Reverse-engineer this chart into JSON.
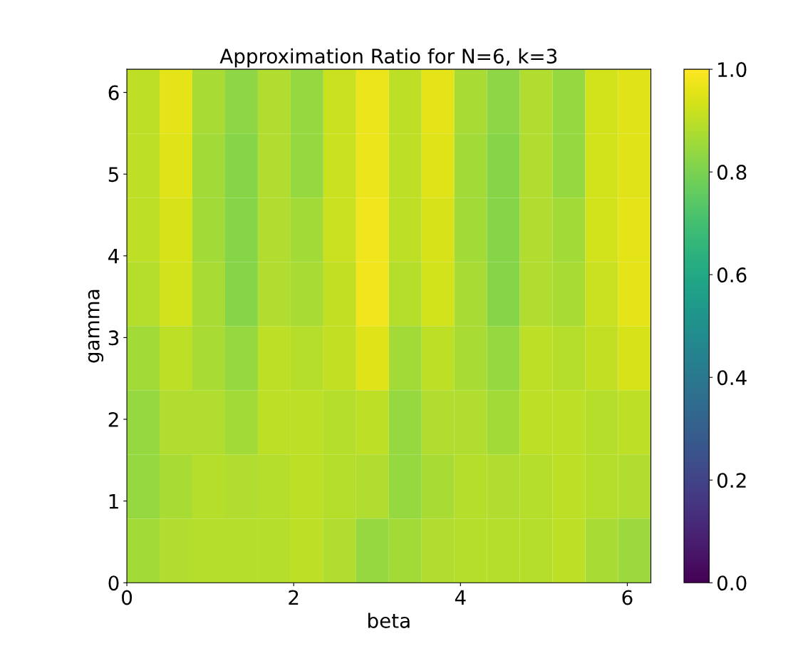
{
  "chart_data": {
    "type": "heatmap",
    "title": "Approximation Ratio for N=6, k=3",
    "xlabel": "beta",
    "ylabel": "gamma",
    "xlim": [
      0,
      6.283
    ],
    "ylim": [
      0,
      6.283
    ],
    "xticks": [
      0,
      2,
      4,
      6
    ],
    "yticks": [
      0,
      1,
      2,
      3,
      4,
      5,
      6
    ],
    "clim": [
      0,
      1
    ],
    "cticks": [
      {
        "value": 0,
        "label": "0.0"
      },
      {
        "value": 0.2,
        "label": "0.2"
      },
      {
        "value": 0.4,
        "label": "0.4"
      },
      {
        "value": 0.6,
        "label": "0.6"
      },
      {
        "value": 0.8,
        "label": "0.8"
      },
      {
        "value": 1,
        "label": "1.0"
      }
    ],
    "cells": [
      [
        0.9,
        0.96,
        0.87,
        0.83,
        0.88,
        0.84,
        0.92,
        0.97,
        0.9,
        0.96,
        0.87,
        0.83,
        0.88,
        0.84,
        0.93,
        0.95
      ],
      [
        0.9,
        0.95,
        0.86,
        0.82,
        0.88,
        0.84,
        0.92,
        0.97,
        0.9,
        0.95,
        0.86,
        0.82,
        0.88,
        0.84,
        0.93,
        0.95
      ],
      [
        0.9,
        0.94,
        0.86,
        0.82,
        0.88,
        0.86,
        0.92,
        0.98,
        0.9,
        0.94,
        0.86,
        0.82,
        0.88,
        0.86,
        0.93,
        0.96
      ],
      [
        0.89,
        0.93,
        0.87,
        0.82,
        0.88,
        0.87,
        0.91,
        0.98,
        0.89,
        0.93,
        0.87,
        0.82,
        0.88,
        0.87,
        0.92,
        0.96
      ],
      [
        0.86,
        0.9,
        0.87,
        0.84,
        0.9,
        0.89,
        0.91,
        0.95,
        0.86,
        0.9,
        0.87,
        0.84,
        0.9,
        0.89,
        0.91,
        0.94
      ],
      [
        0.84,
        0.88,
        0.88,
        0.86,
        0.9,
        0.9,
        0.89,
        0.9,
        0.84,
        0.88,
        0.88,
        0.86,
        0.9,
        0.9,
        0.89,
        0.9
      ],
      [
        0.84,
        0.87,
        0.89,
        0.88,
        0.89,
        0.9,
        0.89,
        0.88,
        0.84,
        0.87,
        0.89,
        0.88,
        0.89,
        0.9,
        0.89,
        0.88
      ],
      [
        0.86,
        0.88,
        0.89,
        0.89,
        0.89,
        0.9,
        0.88,
        0.84,
        0.86,
        0.88,
        0.89,
        0.89,
        0.89,
        0.9,
        0.87,
        0.85
      ]
    ]
  }
}
